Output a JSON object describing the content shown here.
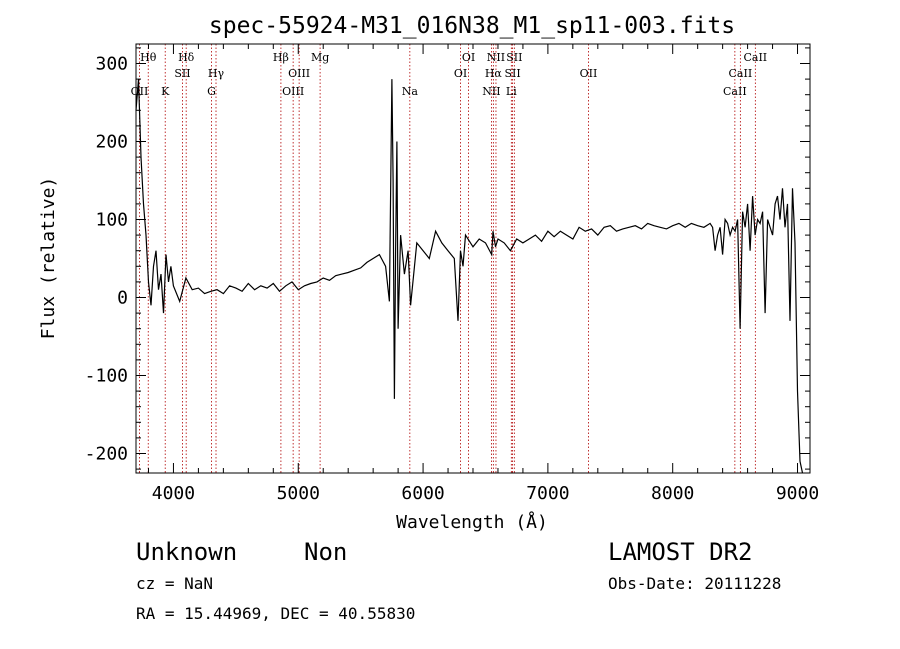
{
  "chart_data": {
    "type": "line",
    "title": "spec-55924-M31_016N38_M1_sp11-003.fits",
    "xlabel": "Wavelength (Å)",
    "ylabel": "Flux (relative)",
    "xlim": [
      3700,
      9100
    ],
    "ylim": [
      -225,
      325
    ],
    "xticks": [
      4000,
      5000,
      6000,
      7000,
      8000,
      9000
    ],
    "yticks": [
      -200,
      -100,
      0,
      100,
      200,
      300
    ],
    "series": [
      {
        "name": "flux",
        "x": [
          3700,
          3720,
          3740,
          3760,
          3780,
          3800,
          3820,
          3840,
          3860,
          3880,
          3900,
          3920,
          3940,
          3960,
          3980,
          4000,
          4050,
          4100,
          4150,
          4200,
          4250,
          4300,
          4350,
          4400,
          4450,
          4500,
          4550,
          4600,
          4650,
          4700,
          4750,
          4800,
          4850,
          4900,
          4950,
          5000,
          5050,
          5100,
          5150,
          5200,
          5250,
          5300,
          5350,
          5400,
          5450,
          5500,
          5550,
          5600,
          5650,
          5700,
          5730,
          5750,
          5760,
          5770,
          5780,
          5790,
          5800,
          5820,
          5850,
          5880,
          5900,
          5950,
          6000,
          6050,
          6100,
          6150,
          6200,
          6250,
          6280,
          6300,
          6320,
          6340,
          6400,
          6450,
          6500,
          6550,
          6560,
          6580,
          6600,
          6650,
          6700,
          6750,
          6800,
          6850,
          6900,
          6950,
          7000,
          7050,
          7100,
          7150,
          7200,
          7250,
          7300,
          7350,
          7400,
          7450,
          7500,
          7550,
          7600,
          7650,
          7700,
          7750,
          7800,
          7850,
          7900,
          7950,
          8000,
          8050,
          8100,
          8150,
          8200,
          8250,
          8300,
          8320,
          8340,
          8360,
          8380,
          8400,
          8420,
          8440,
          8460,
          8480,
          8500,
          8520,
          8540,
          8560,
          8580,
          8600,
          8620,
          8640,
          8660,
          8680,
          8700,
          8720,
          8740,
          8760,
          8780,
          8800,
          8820,
          8840,
          8860,
          8880,
          8900,
          8920,
          8940,
          8960,
          8980,
          9000,
          9020,
          9040
        ],
        "y": [
          240,
          280,
          180,
          120,
          80,
          20,
          -10,
          40,
          60,
          10,
          30,
          -20,
          55,
          20,
          40,
          15,
          -5,
          25,
          10,
          12,
          5,
          8,
          10,
          5,
          15,
          12,
          8,
          18,
          10,
          15,
          12,
          18,
          8,
          15,
          20,
          10,
          15,
          18,
          20,
          25,
          22,
          28,
          30,
          32,
          35,
          38,
          45,
          50,
          55,
          40,
          -5,
          280,
          150,
          -130,
          60,
          200,
          -40,
          80,
          30,
          60,
          -10,
          70,
          60,
          50,
          85,
          70,
          60,
          50,
          -30,
          60,
          40,
          80,
          65,
          75,
          70,
          55,
          85,
          65,
          75,
          70,
          60,
          75,
          70,
          75,
          80,
          72,
          85,
          78,
          85,
          80,
          75,
          90,
          85,
          88,
          80,
          90,
          92,
          85,
          88,
          90,
          92,
          88,
          95,
          92,
          90,
          88,
          92,
          95,
          90,
          95,
          92,
          90,
          95,
          90,
          60,
          80,
          90,
          55,
          100,
          95,
          80,
          90,
          85,
          100,
          -40,
          110,
          90,
          120,
          60,
          130,
          80,
          100,
          95,
          110,
          -20,
          100,
          90,
          80,
          120,
          130,
          100,
          140,
          90,
          120,
          -30,
          140,
          70,
          -120,
          -210,
          -225
        ]
      }
    ],
    "lines": [
      {
        "label": "Hθ",
        "x": 3798,
        "row": 1
      },
      {
        "label": "OII",
        "x": 3728,
        "row": 3
      },
      {
        "label": "Hδ",
        "x": 4102,
        "row": 1
      },
      {
        "label": "K",
        "x": 3934,
        "row": 3
      },
      {
        "label": "SII",
        "x": 4072,
        "row": 2
      },
      {
        "label": "Hγ",
        "x": 4341,
        "row": 2
      },
      {
        "label": "G",
        "x": 4305,
        "row": 3
      },
      {
        "label": "Hβ",
        "x": 4861,
        "row": 1
      },
      {
        "label": "Mg",
        "x": 5175,
        "row": 1
      },
      {
        "label": "OIII",
        "x": 5007,
        "row": 2
      },
      {
        "label": "OIII",
        "x": 4959,
        "row": 3
      },
      {
        "label": "Na",
        "x": 5894,
        "row": 3
      },
      {
        "label": "OI",
        "x": 6364,
        "row": 1
      },
      {
        "label": "OI",
        "x": 6300,
        "row": 2
      },
      {
        "label": "NII",
        "x": 6584,
        "row": 1
      },
      {
        "label": "Hα",
        "x": 6563,
        "row": 2
      },
      {
        "label": "NII",
        "x": 6548,
        "row": 3
      },
      {
        "label": "SII",
        "x": 6731,
        "row": 1
      },
      {
        "label": "SII",
        "x": 6717,
        "row": 2
      },
      {
        "label": "Li",
        "x": 6707,
        "row": 3
      },
      {
        "label": "OII",
        "x": 7325,
        "row": 2
      },
      {
        "label": "CaII",
        "x": 8662,
        "row": 1
      },
      {
        "label": "CaII",
        "x": 8542,
        "row": 2
      },
      {
        "label": "CaII",
        "x": 8498,
        "row": 3
      }
    ],
    "colors": {
      "line": "#000000",
      "marker_lines": "#b00000",
      "axes": "#000000"
    }
  },
  "info": {
    "object_class": "Unknown",
    "subclass": "Non",
    "survey": "LAMOST DR2",
    "cz": "cz = NaN",
    "obs_date": "Obs-Date: 20111228",
    "coords": "RA =  15.44969, DEC =  40.55830"
  }
}
